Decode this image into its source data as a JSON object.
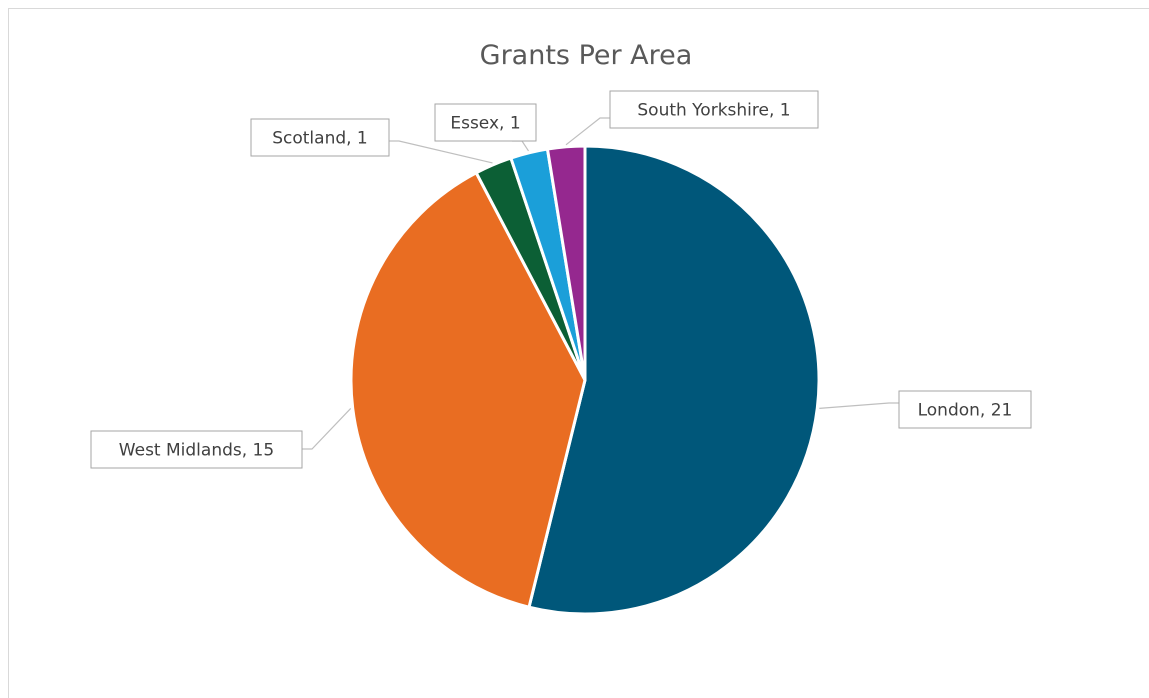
{
  "chart_data": {
    "type": "pie",
    "title": "Grants Per Area",
    "start_angle_deg": 0,
    "direction": "clockwise",
    "series": [
      {
        "values": [
          21,
          15,
          1,
          1,
          1
        ],
        "categories": [
          "London",
          "West Midlands",
          "Scotland",
          "Essex",
          "South Yorkshire"
        ]
      }
    ],
    "colors": [
      "#00577A",
      "#E96D22",
      "#0C5F35",
      "#1B9FD9",
      "#95288F"
    ],
    "data_labels": [
      "London, 21",
      "West Midlands, 15",
      "Scotland, 1",
      "Essex, 1",
      "South Yorkshire, 1"
    ],
    "show_legend": false
  }
}
